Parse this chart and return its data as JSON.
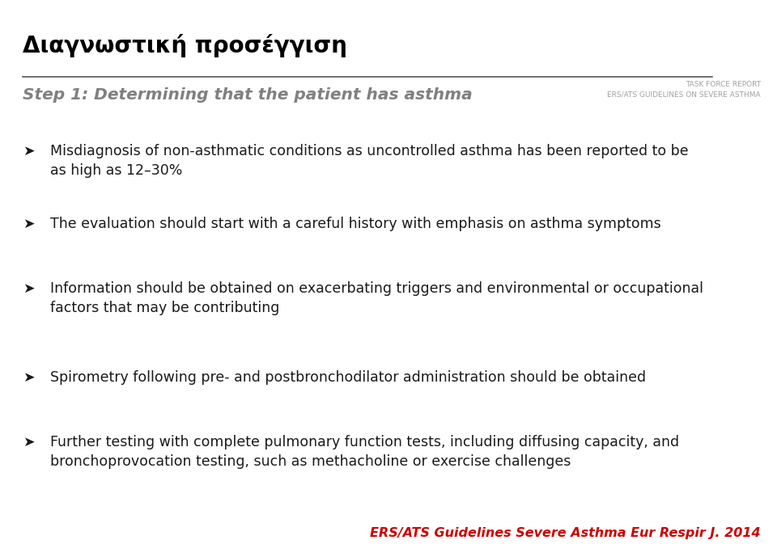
{
  "title_greek": "Διαγνωστική προσέγγιση",
  "step_text": "Step 1: Determining that the patient has asthma",
  "task_force_line1": "TASK FORCE REPORT",
  "task_force_line2": "ERS/ATS GUIDELINES ON SEVERE ASTHMA",
  "bullet_symbol": "➤",
  "bullets": [
    "Misdiagnosis of non-asthmatic conditions as uncontrolled asthma has been reported to be\nas high as 12–30%",
    "The evaluation should start with a careful history with emphasis on asthma symptoms",
    "Information should be obtained on exacerbating triggers and environmental or occupational\nfactors that may be contributing",
    "Spirometry following pre- and postbronchodilator administration should be obtained",
    "Further testing with complete pulmonary function tests, including diffusing capacity, and\nbronchoprovocation testing, such as methacholine or exercise challenges"
  ],
  "citation": "ERS/ATS Guidelines Severe Asthma Eur Respir J. 2014",
  "bg_color": "#ffffff",
  "title_color": "#000000",
  "step_color": "#808080",
  "task_force_color": "#a0a0a0",
  "bullet_color": "#1a1a1a",
  "citation_color": "#cc0000",
  "line_color": "#555555",
  "title_fontsize": 20,
  "step_fontsize": 14.5,
  "task_force_fontsize": 6.5,
  "bullet_fontsize": 12.5,
  "citation_fontsize": 11.5,
  "fig_width": 9.6,
  "fig_height": 6.89,
  "dpi": 100
}
